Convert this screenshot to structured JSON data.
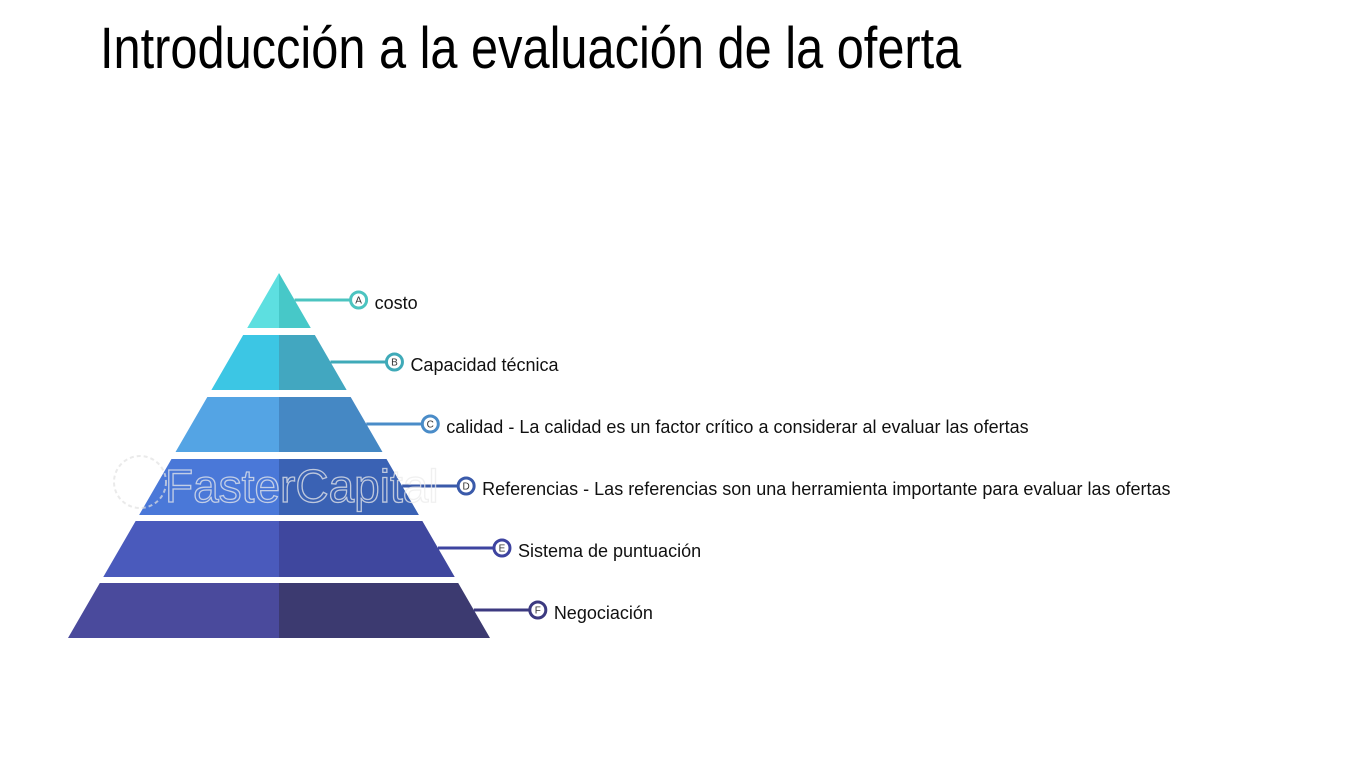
{
  "title": "Introducción a la evaluación de la oferta",
  "watermark": "FasterCapital",
  "pyramid": {
    "tiers": [
      {
        "letter": "A",
        "label": "costo",
        "left_color": "#5ddfe0",
        "right_color": "#47c8c8",
        "accent": "#4cc4c0"
      },
      {
        "letter": "B",
        "label": "Capacidad técnica",
        "left_color": "#3cc6e4",
        "right_color": "#42a7c0",
        "accent": "#3faab8"
      },
      {
        "letter": "C",
        "label": "calidad  - La calidad es un factor crítico a considerar al evaluar las ofertas",
        "left_color": "#54a4e4",
        "right_color": "#4588c4",
        "accent": "#4a8cc8"
      },
      {
        "letter": "D",
        "label": "Referencias  - Las referencias son una herramienta importante para evaluar las ofertas",
        "left_color": "#4a78d8",
        "right_color": "#3a62b4",
        "accent": "#3a5aaa"
      },
      {
        "letter": "E",
        "label": "Sistema de puntuación",
        "left_color": "#4a5abc",
        "right_color": "#3f479e",
        "accent": "#3e44a0"
      },
      {
        "letter": "F",
        "label": "Negociación",
        "left_color": "#4a4a9c",
        "right_color": "#3c3a70",
        "accent": "#3c3a80"
      }
    ]
  }
}
